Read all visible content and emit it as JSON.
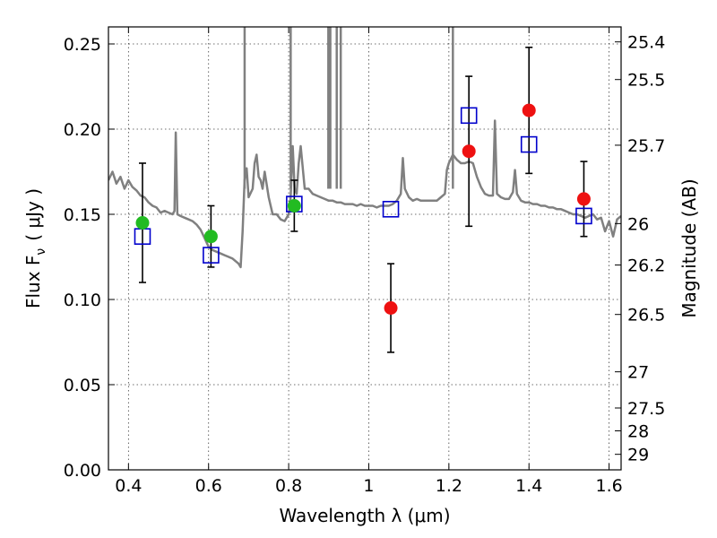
{
  "chart_data": {
    "type": "scatter",
    "title": "",
    "xlabel": "Wavelength  λ (μm)",
    "ylabel": "Flux  F",
    "ylabel_sub": "ν",
    "ylabel_unit": "( μJy )",
    "ylabel_right": "Magnitude (AB)",
    "xlim": [
      0.35,
      1.63
    ],
    "ylim": [
      0.0,
      0.26
    ],
    "grid": true,
    "x_ticks": [
      {
        "value": 0.4,
        "label": "0.4"
      },
      {
        "value": 0.6,
        "label": "0.6"
      },
      {
        "value": 0.8,
        "label": "0.8"
      },
      {
        "value": 1.0,
        "label": "1"
      },
      {
        "value": 1.2,
        "label": "1.2"
      },
      {
        "value": 1.4,
        "label": "1.4"
      },
      {
        "value": 1.6,
        "label": "1.6"
      }
    ],
    "y_ticks": [
      {
        "value": 0.0,
        "label": "0.00"
      },
      {
        "value": 0.05,
        "label": "0.05"
      },
      {
        "value": 0.1,
        "label": "0.10"
      },
      {
        "value": 0.15,
        "label": "0.15"
      },
      {
        "value": 0.2,
        "label": "0.20"
      },
      {
        "value": 0.25,
        "label": "0.25"
      }
    ],
    "mag_ticks": [
      {
        "value": 25.4,
        "label": "25.4"
      },
      {
        "value": 25.5,
        "label": "25.5"
      },
      {
        "value": 25.7,
        "label": "25.7"
      },
      {
        "value": 26.0,
        "label": "26"
      },
      {
        "value": 26.2,
        "label": "26.2"
      },
      {
        "value": 26.5,
        "label": "26.5"
      },
      {
        "value": 27.0,
        "label": "27"
      },
      {
        "value": 27.5,
        "label": "27.5"
      },
      {
        "value": 28.0,
        "label": "28"
      },
      {
        "value": 29.0,
        "label": "29"
      }
    ],
    "model_spectrum": {
      "color": "#808080",
      "points": [
        [
          0.35,
          0.17
        ],
        [
          0.36,
          0.175
        ],
        [
          0.37,
          0.168
        ],
        [
          0.38,
          0.172
        ],
        [
          0.39,
          0.165
        ],
        [
          0.4,
          0.17
        ],
        [
          0.41,
          0.166
        ],
        [
          0.42,
          0.164
        ],
        [
          0.43,
          0.161
        ],
        [
          0.44,
          0.16
        ],
        [
          0.45,
          0.157
        ],
        [
          0.46,
          0.155
        ],
        [
          0.47,
          0.154
        ],
        [
          0.48,
          0.151
        ],
        [
          0.49,
          0.152
        ],
        [
          0.5,
          0.151
        ],
        [
          0.51,
          0.15
        ],
        [
          0.515,
          0.152
        ],
        [
          0.518,
          0.198
        ],
        [
          0.522,
          0.15
        ],
        [
          0.53,
          0.149
        ],
        [
          0.54,
          0.148
        ],
        [
          0.55,
          0.147
        ],
        [
          0.56,
          0.146
        ],
        [
          0.57,
          0.144
        ],
        [
          0.58,
          0.141
        ],
        [
          0.59,
          0.136
        ],
        [
          0.6,
          0.131
        ],
        [
          0.61,
          0.129
        ],
        [
          0.62,
          0.128
        ],
        [
          0.63,
          0.127
        ],
        [
          0.64,
          0.126
        ],
        [
          0.65,
          0.125
        ],
        [
          0.66,
          0.124
        ],
        [
          0.67,
          0.122
        ],
        [
          0.675,
          0.121
        ],
        [
          0.68,
          0.119
        ],
        [
          0.685,
          0.14
        ],
        [
          0.69,
          0.17
        ],
        [
          0.695,
          0.177
        ],
        [
          0.7,
          0.16
        ],
        [
          0.71,
          0.165
        ],
        [
          0.715,
          0.18
        ],
        [
          0.72,
          0.185
        ],
        [
          0.725,
          0.172
        ],
        [
          0.73,
          0.17
        ],
        [
          0.735,
          0.165
        ],
        [
          0.74,
          0.175
        ],
        [
          0.75,
          0.16
        ],
        [
          0.76,
          0.15
        ],
        [
          0.77,
          0.15
        ],
        [
          0.78,
          0.147
        ],
        [
          0.79,
          0.146
        ],
        [
          0.8,
          0.15
        ],
        [
          0.805,
          0.16
        ],
        [
          0.81,
          0.19
        ],
        [
          0.815,
          0.165
        ],
        [
          0.82,
          0.162
        ],
        [
          0.825,
          0.18
        ],
        [
          0.83,
          0.19
        ],
        [
          0.84,
          0.165
        ],
        [
          0.85,
          0.165
        ],
        [
          0.86,
          0.162
        ],
        [
          0.87,
          0.161
        ],
        [
          0.88,
          0.16
        ],
        [
          0.89,
          0.159
        ],
        [
          0.9,
          0.158
        ],
        [
          0.91,
          0.158
        ],
        [
          0.92,
          0.157
        ],
        [
          0.93,
          0.157
        ],
        [
          0.94,
          0.156
        ],
        [
          0.95,
          0.156
        ],
        [
          0.96,
          0.156
        ],
        [
          0.97,
          0.155
        ],
        [
          0.98,
          0.156
        ],
        [
          0.99,
          0.155
        ],
        [
          1.0,
          0.155
        ],
        [
          1.01,
          0.155
        ],
        [
          1.02,
          0.154
        ],
        [
          1.03,
          0.155
        ],
        [
          1.04,
          0.155
        ],
        [
          1.05,
          0.155
        ],
        [
          1.06,
          0.156
        ],
        [
          1.07,
          0.158
        ],
        [
          1.08,
          0.162
        ],
        [
          1.085,
          0.183
        ],
        [
          1.09,
          0.165
        ],
        [
          1.1,
          0.16
        ],
        [
          1.11,
          0.158
        ],
        [
          1.12,
          0.159
        ],
        [
          1.13,
          0.158
        ],
        [
          1.14,
          0.158
        ],
        [
          1.15,
          0.158
        ],
        [
          1.16,
          0.158
        ],
        [
          1.17,
          0.158
        ],
        [
          1.18,
          0.16
        ],
        [
          1.19,
          0.162
        ],
        [
          1.195,
          0.176
        ],
        [
          1.2,
          0.18
        ],
        [
          1.21,
          0.185
        ],
        [
          1.22,
          0.182
        ],
        [
          1.23,
          0.18
        ],
        [
          1.24,
          0.18
        ],
        [
          1.25,
          0.181
        ],
        [
          1.26,
          0.18
        ],
        [
          1.27,
          0.172
        ],
        [
          1.28,
          0.166
        ],
        [
          1.29,
          0.162
        ],
        [
          1.3,
          0.161
        ],
        [
          1.31,
          0.161
        ],
        [
          1.315,
          0.205
        ],
        [
          1.32,
          0.162
        ],
        [
          1.33,
          0.16
        ],
        [
          1.34,
          0.159
        ],
        [
          1.35,
          0.159
        ],
        [
          1.36,
          0.163
        ],
        [
          1.365,
          0.176
        ],
        [
          1.37,
          0.162
        ],
        [
          1.38,
          0.158
        ],
        [
          1.39,
          0.157
        ],
        [
          1.4,
          0.157
        ],
        [
          1.41,
          0.156
        ],
        [
          1.42,
          0.156
        ],
        [
          1.43,
          0.155
        ],
        [
          1.44,
          0.155
        ],
        [
          1.45,
          0.154
        ],
        [
          1.46,
          0.154
        ],
        [
          1.47,
          0.153
        ],
        [
          1.48,
          0.153
        ],
        [
          1.49,
          0.152
        ],
        [
          1.5,
          0.151
        ],
        [
          1.51,
          0.15
        ],
        [
          1.52,
          0.15
        ],
        [
          1.53,
          0.149
        ],
        [
          1.54,
          0.148
        ],
        [
          1.55,
          0.149
        ],
        [
          1.56,
          0.15
        ],
        [
          1.57,
          0.147
        ],
        [
          1.58,
          0.148
        ],
        [
          1.59,
          0.14
        ],
        [
          1.6,
          0.146
        ],
        [
          1.61,
          0.137
        ],
        [
          1.62,
          0.147
        ],
        [
          1.63,
          0.149
        ]
      ],
      "spikes": [
        {
          "x": 0.69,
          "y": 0.26
        },
        {
          "x": 0.805,
          "y": 0.26
        },
        {
          "x": 0.899,
          "y": 0.26
        },
        {
          "x": 0.904,
          "y": 0.26
        },
        {
          "x": 0.92,
          "y": 0.26
        },
        {
          "x": 0.93,
          "y": 0.26
        },
        {
          "x": 1.21,
          "y": 0.26
        }
      ]
    },
    "model_photometry": {
      "color": "#0000cc",
      "marker": "open-square",
      "points": [
        {
          "x": 0.435,
          "y": 0.137
        },
        {
          "x": 0.606,
          "y": 0.126
        },
        {
          "x": 0.814,
          "y": 0.156
        },
        {
          "x": 1.055,
          "y": 0.153
        },
        {
          "x": 1.25,
          "y": 0.208
        },
        {
          "x": 1.4,
          "y": 0.191
        },
        {
          "x": 1.537,
          "y": 0.149
        }
      ]
    },
    "observed_detections": {
      "color": "#22bb22",
      "marker": "filled-circle",
      "points": [
        {
          "x": 0.435,
          "y": 0.145,
          "err": 0.035
        },
        {
          "x": 0.606,
          "y": 0.137,
          "err": 0.018
        },
        {
          "x": 0.814,
          "y": 0.155,
          "err": 0.015
        }
      ]
    },
    "observed_nir": {
      "color": "#ee1111",
      "marker": "filled-circle",
      "points": [
        {
          "x": 1.055,
          "y": 0.095,
          "err": 0.026
        },
        {
          "x": 1.25,
          "y": 0.187,
          "err": 0.044
        },
        {
          "x": 1.4,
          "y": 0.211,
          "err": 0.037
        },
        {
          "x": 1.537,
          "y": 0.159,
          "err": 0.022
        }
      ]
    }
  }
}
